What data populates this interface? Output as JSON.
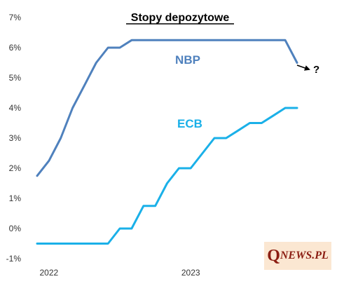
{
  "chart_data": {
    "type": "line",
    "title": "Stopy depozytowe",
    "xlabel": "",
    "ylabel": "",
    "x_ticks": [
      "2022",
      "2023"
    ],
    "y_ticks": [
      "-1%",
      "0%",
      "1%",
      "2%",
      "3%",
      "4%",
      "5%",
      "6%",
      "7%"
    ],
    "ylim": [
      -1,
      7
    ],
    "grid": false,
    "series": [
      {
        "name": "NBP",
        "color": "#4f81bd",
        "x": [
          "2021-12",
          "2022-01",
          "2022-02",
          "2022-03",
          "2022-04",
          "2022-05",
          "2022-06",
          "2022-07",
          "2022-08",
          "2022-09",
          "2022-10",
          "2022-11",
          "2022-12",
          "2023-01",
          "2023-02",
          "2023-03",
          "2023-04",
          "2023-05",
          "2023-06",
          "2023-07",
          "2023-08",
          "2023-09",
          "2023-10"
        ],
        "values": [
          1.75,
          2.25,
          3.0,
          4.0,
          4.75,
          5.5,
          6.0,
          6.0,
          6.25,
          6.25,
          6.25,
          6.25,
          6.25,
          6.25,
          6.25,
          6.25,
          6.25,
          6.25,
          6.25,
          6.25,
          6.25,
          6.25,
          5.5
        ]
      },
      {
        "name": "ECB",
        "color": "#1ab0e8",
        "x": [
          "2021-12",
          "2022-01",
          "2022-02",
          "2022-03",
          "2022-04",
          "2022-05",
          "2022-06",
          "2022-07",
          "2022-08",
          "2022-09",
          "2022-10",
          "2022-11",
          "2022-12",
          "2023-01",
          "2023-02",
          "2023-03",
          "2023-04",
          "2023-05",
          "2023-06",
          "2023-07",
          "2023-08",
          "2023-09",
          "2023-10"
        ],
        "values": [
          -0.5,
          -0.5,
          -0.5,
          -0.5,
          -0.5,
          -0.5,
          -0.5,
          0.0,
          0.0,
          0.75,
          0.75,
          1.5,
          2.0,
          2.0,
          2.5,
          3.0,
          3.0,
          3.25,
          3.5,
          3.5,
          3.75,
          4.0,
          4.0
        ]
      }
    ],
    "annotation": "?"
  },
  "logo": {
    "q": "Q",
    "rest": "NEWS.PL"
  }
}
